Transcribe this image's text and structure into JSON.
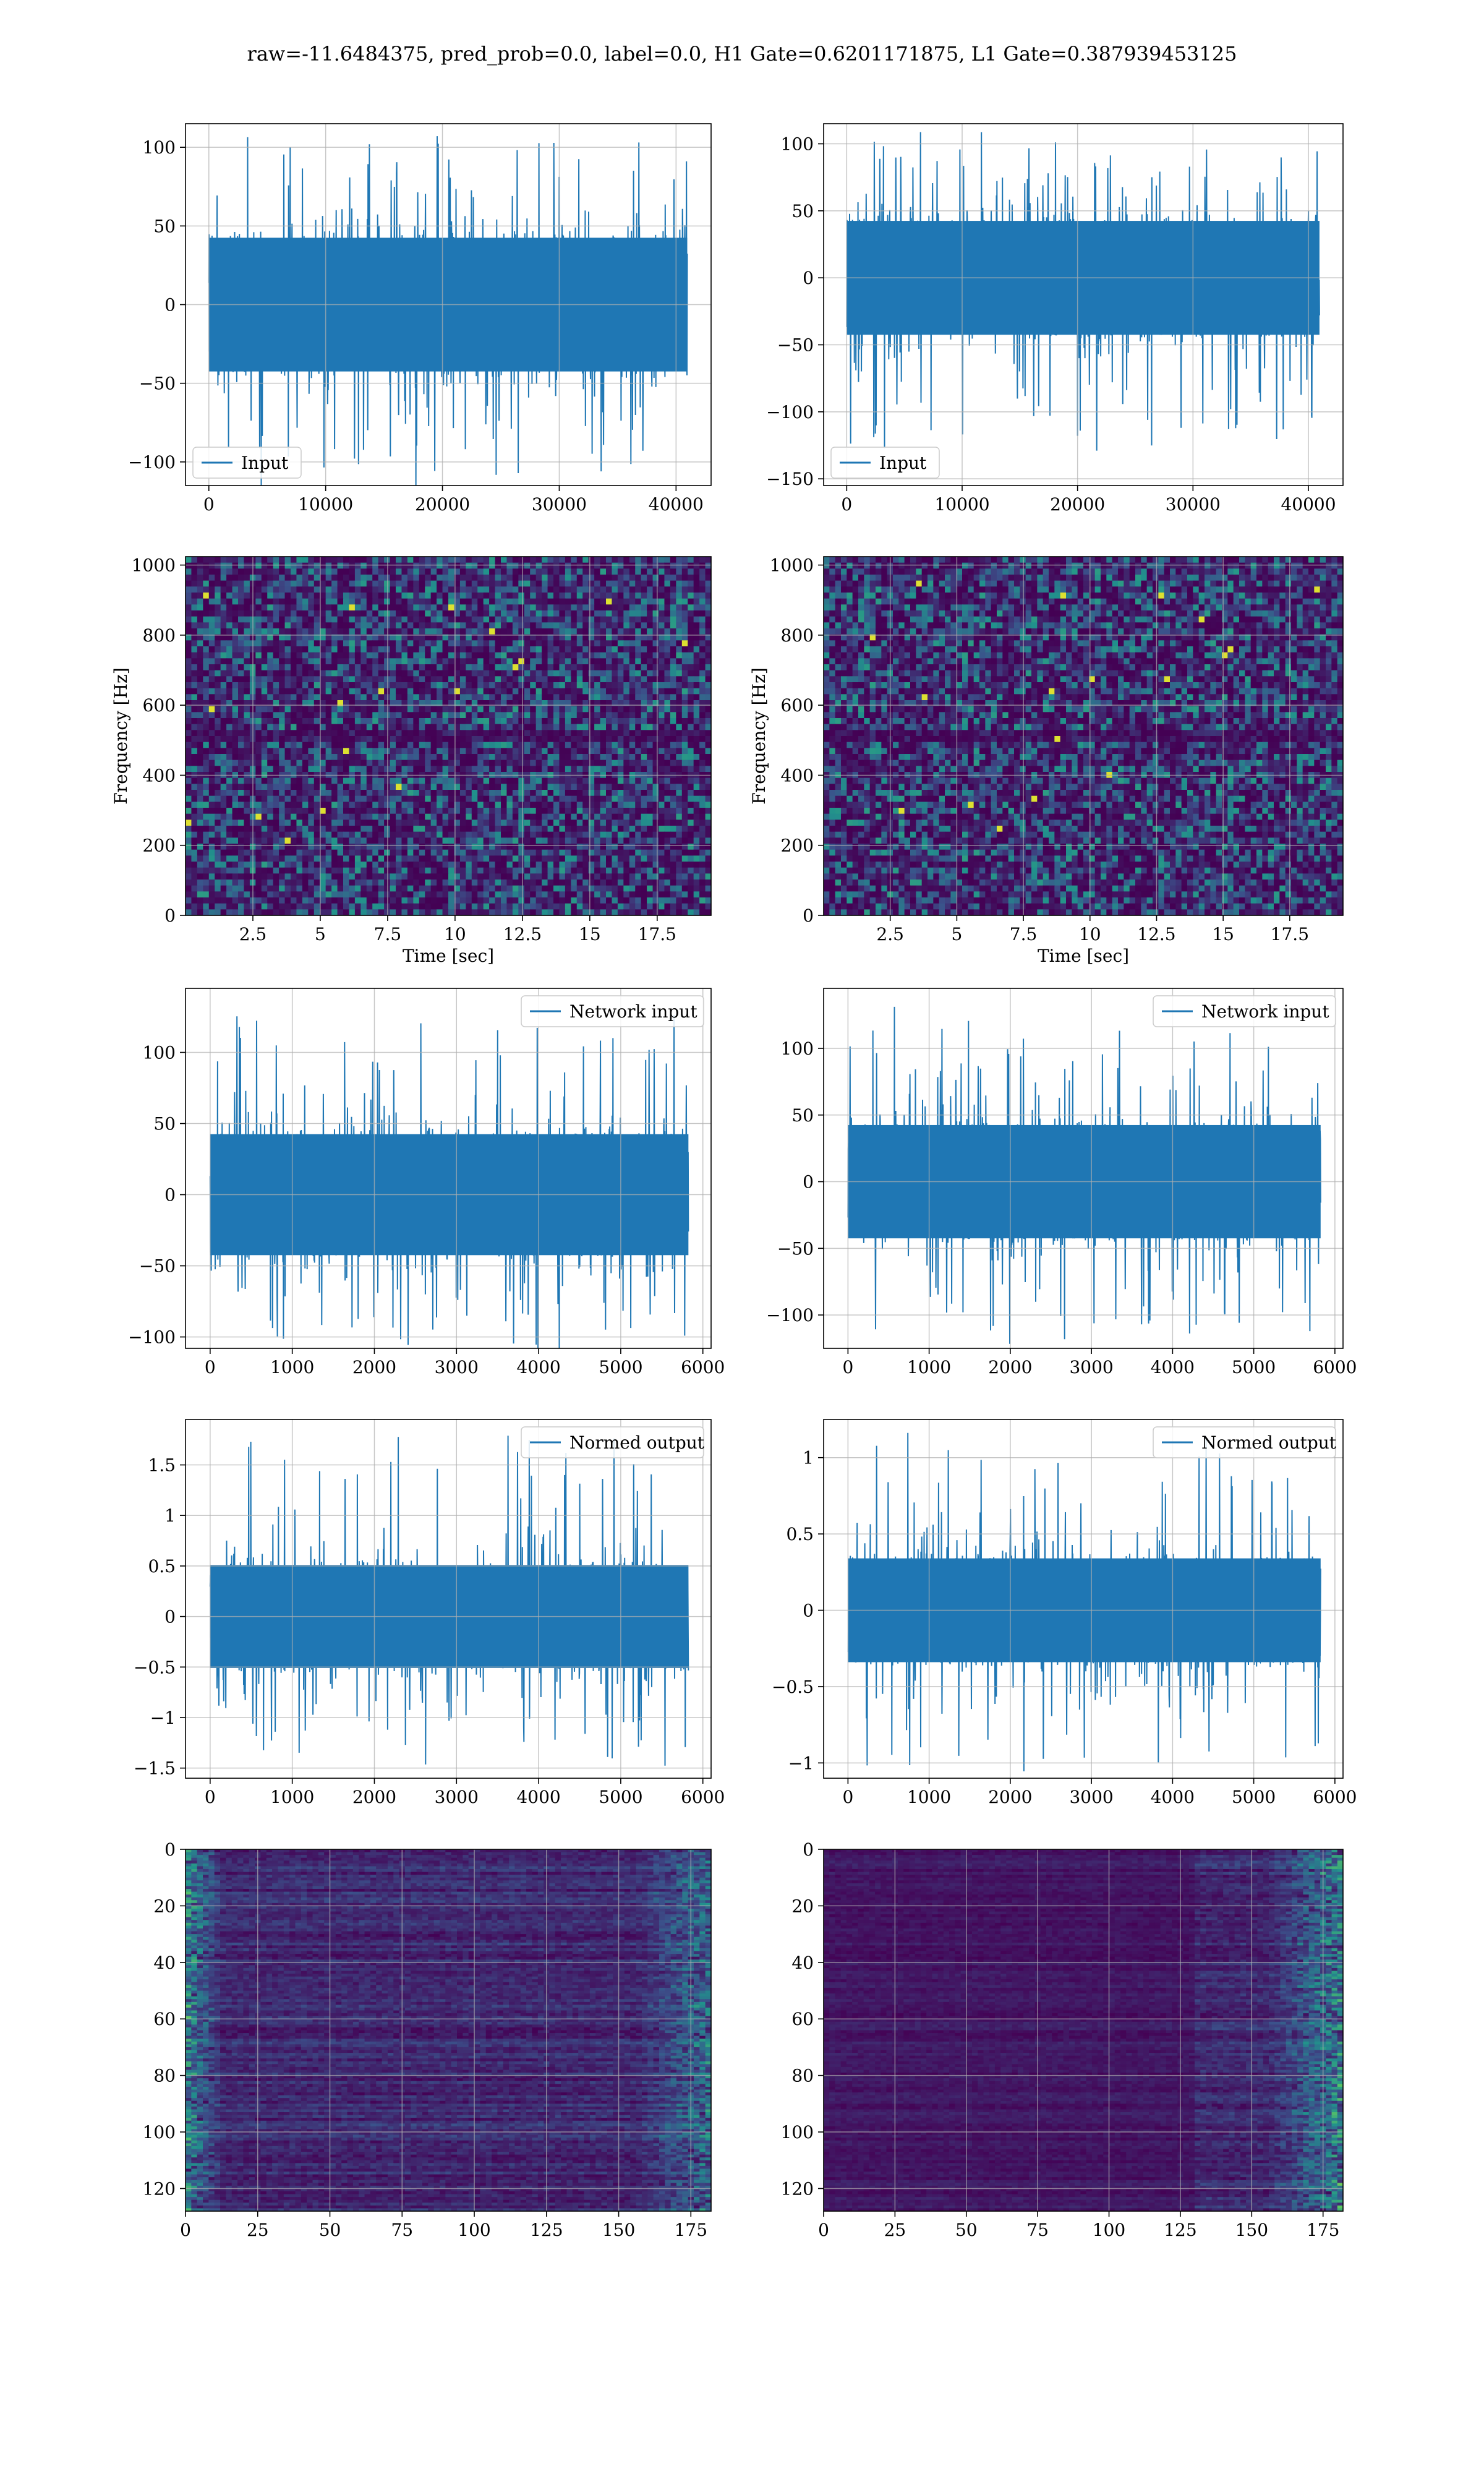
{
  "suptitle": "raw=-11.6484375, pred_prob=0.0, label=0.0, H1 Gate=0.6201171875, L1 Gate=0.387939453125",
  "colors": {
    "line": "#1f77b4",
    "grid": "#b0b0b0",
    "viridis_low": "#440154",
    "viridis_mid": "#21918c",
    "viridis_high": "#fde725"
  },
  "chart_data": [
    {
      "id": "h1-input",
      "type": "line",
      "legend": "Input",
      "legend_loc": "lower-left",
      "xlim": [
        -2000,
        43000
      ],
      "ylim": [
        -115,
        115
      ],
      "xticks": [
        0,
        10000,
        20000,
        30000,
        40000
      ],
      "yticks": [
        -100,
        -50,
        0,
        50,
        100
      ],
      "x_range": [
        0,
        40960
      ],
      "band": [
        -50,
        50
      ],
      "peak": [
        -127,
        110
      ],
      "grid": true
    },
    {
      "id": "l1-input",
      "type": "line",
      "legend": "Input",
      "legend_loc": "lower-left",
      "xlim": [
        -2000,
        43000
      ],
      "ylim": [
        -155,
        115
      ],
      "xticks": [
        0,
        10000,
        20000,
        30000,
        40000
      ],
      "yticks": [
        -150,
        -100,
        -50,
        0,
        50,
        100
      ],
      "x_range": [
        0,
        40960
      ],
      "band": [
        -50,
        50
      ],
      "peak": [
        -145,
        110
      ],
      "grid": true
    },
    {
      "id": "h1-spectrogram",
      "type": "heatmap",
      "xlabel": "Time [sec]",
      "ylabel": "Frequency [Hz]",
      "xlim": [
        0,
        19.5
      ],
      "ylim": [
        0,
        1024
      ],
      "xticks": [
        2.5,
        5.0,
        7.5,
        10.0,
        12.5,
        15.0,
        17.5
      ],
      "yticks": [
        0,
        200,
        400,
        600,
        800,
        1000
      ],
      "colormap": "viridis",
      "grid": true
    },
    {
      "id": "l1-spectrogram",
      "type": "heatmap",
      "xlabel": "Time [sec]",
      "ylabel": "Frequency [Hz]",
      "xlim": [
        0,
        19.5
      ],
      "ylim": [
        0,
        1024
      ],
      "xticks": [
        2.5,
        5.0,
        7.5,
        10.0,
        12.5,
        15.0,
        17.5
      ],
      "yticks": [
        0,
        200,
        400,
        600,
        800,
        1000
      ],
      "colormap": "viridis",
      "grid": true
    },
    {
      "id": "h1-network-input",
      "type": "line",
      "legend": "Network input",
      "legend_loc": "top-right",
      "xlim": [
        -300,
        6100
      ],
      "ylim": [
        -108,
        145
      ],
      "xticks": [
        0,
        1000,
        2000,
        3000,
        4000,
        5000,
        6000
      ],
      "yticks": [
        -100,
        -50,
        0,
        50,
        100
      ],
      "x_range": [
        0,
        5824
      ],
      "band": [
        -50,
        50
      ],
      "peak": [
        -100,
        128
      ],
      "grid": true
    },
    {
      "id": "l1-network-input",
      "type": "line",
      "legend": "Network input",
      "legend_loc": "top-right",
      "xlim": [
        -300,
        6100
      ],
      "ylim": [
        -125,
        145
      ],
      "xticks": [
        0,
        1000,
        2000,
        3000,
        4000,
        5000,
        6000
      ],
      "yticks": [
        -100,
        -50,
        0,
        50,
        100
      ],
      "x_range": [
        0,
        5824
      ],
      "band": [
        -50,
        50
      ],
      "peak": [
        -115,
        133
      ],
      "grid": true
    },
    {
      "id": "h1-normed-output",
      "type": "line",
      "legend": "Normed output",
      "legend_loc": "top-right",
      "xlim": [
        -300,
        6100
      ],
      "ylim": [
        -1.6,
        1.95
      ],
      "xticks": [
        0,
        1000,
        2000,
        3000,
        4000,
        5000,
        6000
      ],
      "yticks": [
        -1.5,
        -1.0,
        -0.5,
        0.0,
        0.5,
        1.0,
        1.5
      ],
      "x_range": [
        0,
        5824
      ],
      "band": [
        -0.6,
        0.6
      ],
      "peak": [
        -1.35,
        1.8
      ],
      "grid": true
    },
    {
      "id": "l1-normed-output",
      "type": "line",
      "legend": "Normed output",
      "legend_loc": "top-right",
      "xlim": [
        -300,
        6100
      ],
      "ylim": [
        -1.1,
        1.25
      ],
      "xticks": [
        0,
        1000,
        2000,
        3000,
        4000,
        5000,
        6000
      ],
      "yticks": [
        -1.0,
        -0.5,
        0.0,
        0.5,
        1.0
      ],
      "x_range": [
        0,
        5824
      ],
      "band": [
        -0.4,
        0.4
      ],
      "peak": [
        -1.0,
        1.18
      ],
      "grid": true
    },
    {
      "id": "h1-feature-map",
      "type": "heatmap",
      "xlim": [
        0,
        182
      ],
      "ylim": [
        128,
        0
      ],
      "xticks": [
        0,
        25,
        50,
        75,
        100,
        125,
        150,
        175
      ],
      "yticks": [
        0,
        20,
        40,
        60,
        80,
        100,
        120
      ],
      "colormap": "viridis",
      "grid": true,
      "edge_side": "both"
    },
    {
      "id": "l1-feature-map",
      "type": "heatmap",
      "xlim": [
        0,
        182
      ],
      "ylim": [
        128,
        0
      ],
      "xticks": [
        0,
        25,
        50,
        75,
        100,
        125,
        150,
        175
      ],
      "yticks": [
        0,
        20,
        40,
        60,
        80,
        100,
        120
      ],
      "colormap": "viridis",
      "grid": true,
      "edge_side": "right"
    }
  ]
}
